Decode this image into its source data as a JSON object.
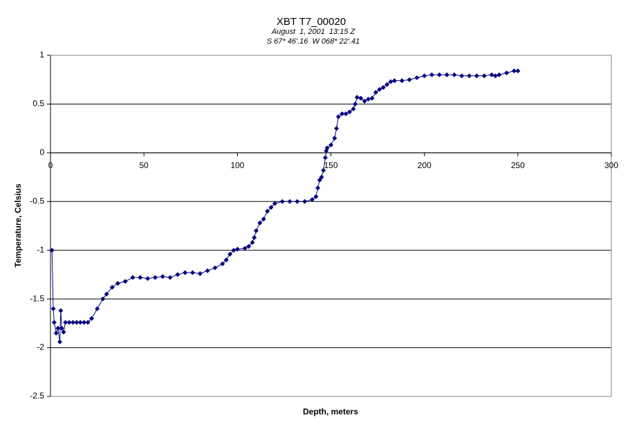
{
  "chart_data": {
    "type": "line",
    "title": "XBT T7_00020",
    "subtitle": [
      "August  1, 2001  13:15 Z",
      "S 67* 46'.16  W 068* 22'.41"
    ],
    "x_label": "Depth, meters",
    "y_label": "Temperature, Celsius",
    "x": [
      0.8,
      1.5,
      2,
      3,
      4,
      5,
      5.5,
      6,
      7,
      8,
      10,
      12,
      14,
      16,
      18,
      20,
      22,
      25,
      28,
      30,
      33,
      36,
      40,
      44,
      48,
      52,
      56,
      60,
      64,
      68,
      72,
      76,
      80,
      84,
      88,
      92,
      94,
      96,
      98,
      100,
      104,
      106,
      108,
      109,
      110,
      112,
      114,
      116,
      118,
      120,
      124,
      128,
      132,
      136,
      140,
      142,
      143,
      144,
      145,
      146,
      147,
      147.5,
      148,
      150,
      152,
      153,
      154,
      156,
      158,
      160,
      162,
      163,
      164,
      166,
      168,
      170,
      172,
      174,
      176,
      178,
      180,
      182,
      184,
      188,
      192,
      196,
      200,
      204,
      208,
      212,
      216,
      220,
      224,
      228,
      232,
      236,
      238,
      240,
      244,
      248,
      250
    ],
    "values": [
      -1.0,
      -1.6,
      -1.74,
      -1.85,
      -1.8,
      -1.94,
      -1.62,
      -1.8,
      -1.84,
      -1.74,
      -1.74,
      -1.74,
      -1.74,
      -1.74,
      -1.74,
      -1.74,
      -1.7,
      -1.6,
      -1.5,
      -1.45,
      -1.38,
      -1.34,
      -1.32,
      -1.28,
      -1.28,
      -1.29,
      -1.28,
      -1.27,
      -1.28,
      -1.25,
      -1.23,
      -1.23,
      -1.24,
      -1.21,
      -1.18,
      -1.14,
      -1.1,
      -1.04,
      -1.0,
      -0.99,
      -0.98,
      -0.96,
      -0.92,
      -0.87,
      -0.8,
      -0.72,
      -0.68,
      -0.6,
      -0.56,
      -0.52,
      -0.5,
      -0.5,
      -0.5,
      -0.5,
      -0.48,
      -0.45,
      -0.36,
      -0.28,
      -0.25,
      -0.18,
      -0.05,
      0.02,
      0.05,
      0.08,
      0.15,
      0.25,
      0.37,
      0.4,
      0.4,
      0.42,
      0.45,
      0.5,
      0.57,
      0.56,
      0.53,
      0.55,
      0.56,
      0.62,
      0.65,
      0.67,
      0.7,
      0.73,
      0.74,
      0.74,
      0.75,
      0.77,
      0.79,
      0.8,
      0.8,
      0.8,
      0.8,
      0.79,
      0.79,
      0.79,
      0.79,
      0.8,
      0.79,
      0.8,
      0.82,
      0.84,
      0.84
    ],
    "color": "#000080",
    "marker": "diamond",
    "xlim": [
      0,
      300
    ],
    "xticks": [
      0,
      50,
      100,
      150,
      200,
      250,
      300
    ],
    "ylim": [
      -2.5,
      1
    ],
    "yticks": [
      1,
      0.5,
      0,
      -0.5,
      -1,
      -1.5,
      -2,
      -2.5
    ],
    "grid": true
  }
}
